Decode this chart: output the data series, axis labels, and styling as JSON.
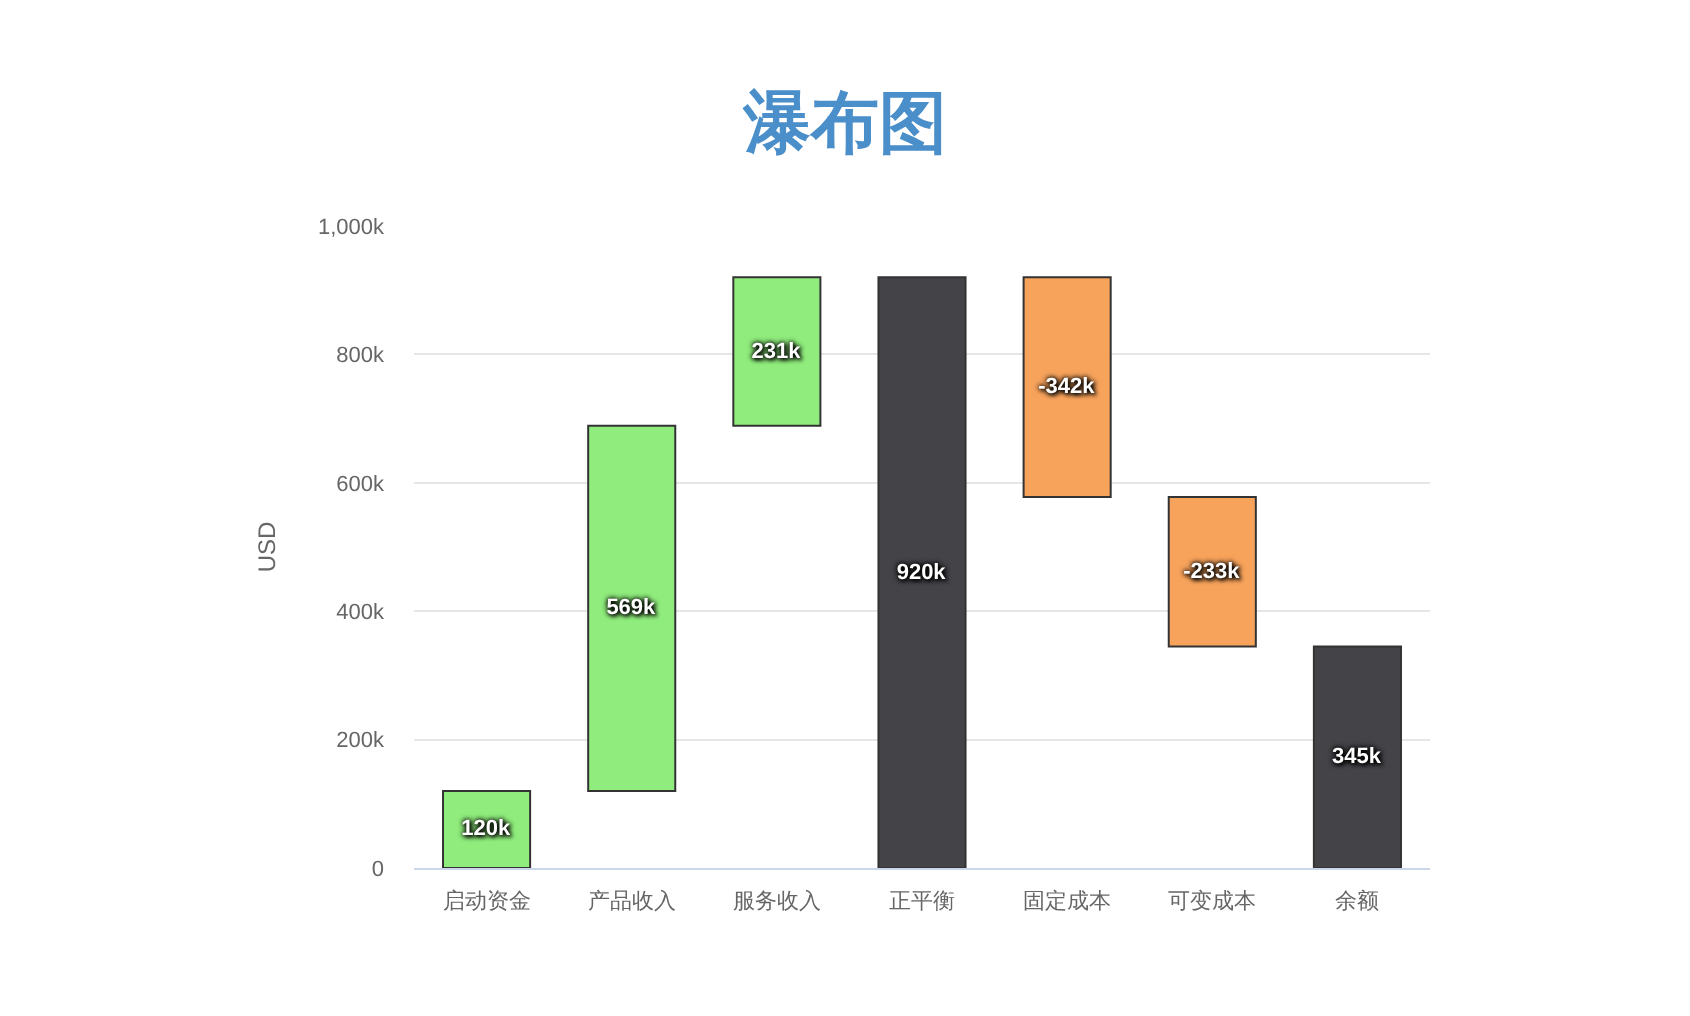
{
  "chart_data": {
    "type": "bar",
    "title": "瀑布图",
    "ylabel": "USD",
    "categories": [
      "启动资金",
      "产品收入",
      "服务收入",
      "正平衡",
      "固定成本",
      "可变成本",
      "余额"
    ],
    "values": [
      120000,
      569000,
      231000,
      920000,
      -342000,
      -233000,
      345000
    ],
    "base": [
      0,
      120000,
      689000,
      0,
      920000,
      578000,
      0
    ],
    "colors": [
      "#90ed7d",
      "#90ed7d",
      "#90ed7d",
      "#434348",
      "#f7a35c",
      "#f7a35c",
      "#434348"
    ],
    "value_labels": [
      "120k",
      "569k",
      "231k",
      "920k",
      "-342k",
      "-233k",
      "345k"
    ],
    "ylim": [
      0,
      1000000
    ],
    "yticks": [
      {
        "value": 0,
        "label": "0"
      },
      {
        "value": 200000,
        "label": "200k"
      },
      {
        "value": 400000,
        "label": "400k"
      },
      {
        "value": 600000,
        "label": "600k"
      },
      {
        "value": 800000,
        "label": "800k"
      },
      {
        "value": 1000000,
        "label": "1,000k"
      }
    ],
    "grid": "y"
  }
}
